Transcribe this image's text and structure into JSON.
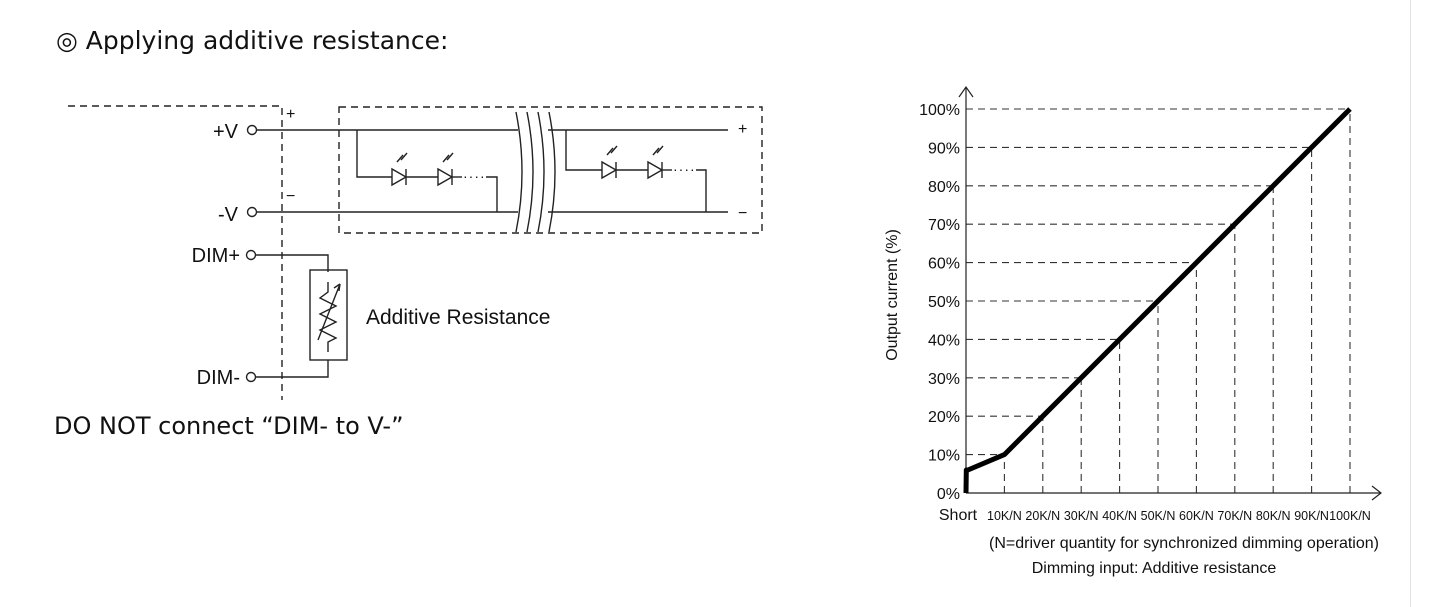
{
  "heading": "◎  Applying additive resistance:",
  "warning": "DO NOT connect “DIM- to V-”",
  "wiring": {
    "terminals": {
      "v_plus": "+V",
      "v_minus": "-V",
      "dim_plus": "DIM+",
      "dim_minus": "DIM-"
    },
    "polarity_plus": "+",
    "polarity_minus": "−",
    "resistor_label": "Additive Resistance"
  },
  "chart_data": {
    "type": "line",
    "title": "",
    "xlabel": "Dimming input: Additive resistance",
    "xlabel_note": "(N=driver quantity for synchronized dimming operation)",
    "ylabel": "Output current (%)",
    "categories": [
      "Short",
      "10K/N",
      "20K/N",
      "30K/N",
      "40K/N",
      "50K/N",
      "60K/N",
      "70K/N",
      "80K/N",
      "90K/N",
      "100K/N"
    ],
    "y_ticks": [
      "0%",
      "10%",
      "20%",
      "30%",
      "40%",
      "50%",
      "60%",
      "70%",
      "80%",
      "90%",
      "100%"
    ],
    "ylim": [
      0,
      100
    ],
    "grid": true,
    "series": [
      {
        "x": [
          0,
          0.08,
          0.5,
          10,
          20,
          30,
          40,
          50,
          60,
          70,
          80,
          90,
          100
        ],
        "values": [
          0,
          6,
          6,
          10,
          20,
          30,
          40,
          50,
          60,
          70,
          80,
          90,
          100
        ]
      }
    ]
  }
}
